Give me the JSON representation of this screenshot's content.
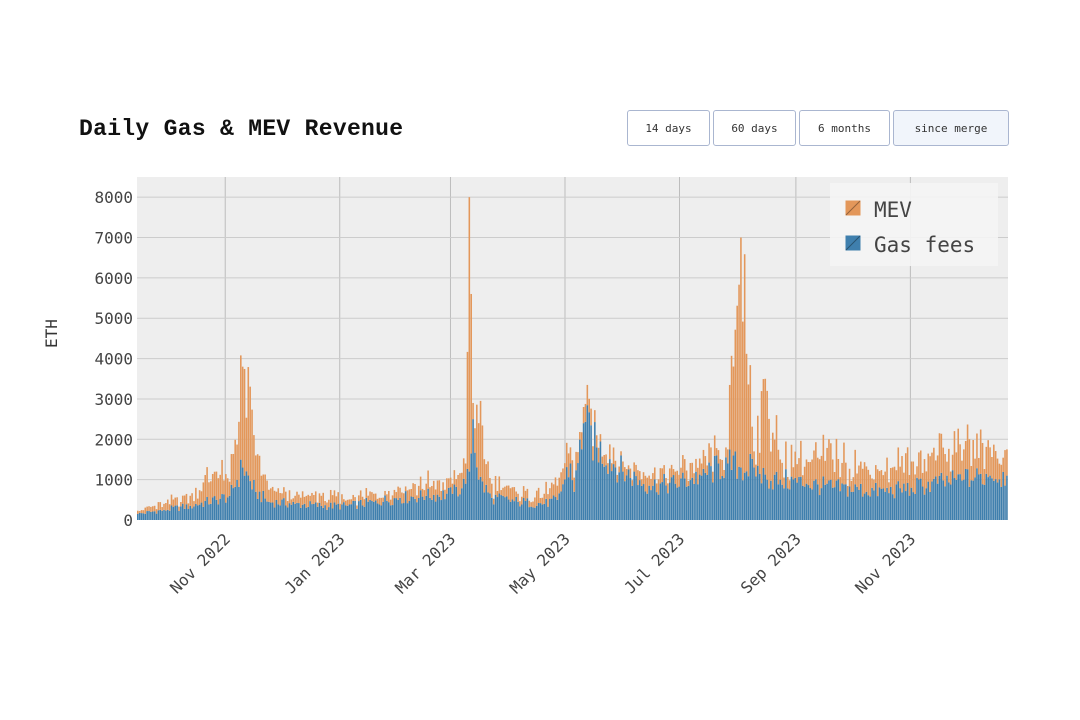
{
  "title": "Daily Gas & MEV Revenue",
  "range_buttons": [
    {
      "label": "14 days",
      "active": false
    },
    {
      "label": "60 days",
      "active": false
    },
    {
      "label": "6 months",
      "active": false
    },
    {
      "label": "since merge",
      "active": true
    }
  ],
  "colors": {
    "mev": "#e3975a",
    "gas": "#3f7fad",
    "plot_bg": "#eeeeee",
    "grid": "#cccccc"
  },
  "chart_data": {
    "type": "bar",
    "stacked": true,
    "title": "Daily Gas & MEV Revenue",
    "xlabel": "",
    "ylabel": "ETH",
    "x_start": "2022-09-15",
    "x_end": "2023-12-23",
    "ylim": [
      0,
      8500
    ],
    "y_ticks": [
      0,
      1000,
      2000,
      3000,
      4000,
      5000,
      6000,
      7000,
      8000
    ],
    "x_tick_labels": [
      {
        "date": "2022-11-01",
        "label": "Nov 2022"
      },
      {
        "date": "2023-01-01",
        "label": "Jan 2023"
      },
      {
        "date": "2023-03-01",
        "label": "Mar 2023"
      },
      {
        "date": "2023-05-01",
        "label": "May 2023"
      },
      {
        "date": "2023-07-01",
        "label": "Jul 2023"
      },
      {
        "date": "2023-09-01",
        "label": "Sep 2023"
      },
      {
        "date": "2023-11-01",
        "label": "Nov 2023"
      }
    ],
    "grid": true,
    "legend_position": "top-right",
    "series": [
      {
        "name": "MEV",
        "dates": [
          "2022-09-15",
          "2022-09-29",
          "2022-10-13",
          "2022-10-27",
          "2022-11-03",
          "2022-11-10",
          "2022-11-17",
          "2022-11-24",
          "2022-12-08",
          "2022-12-22",
          "2023-01-05",
          "2023-01-19",
          "2023-02-02",
          "2023-02-16",
          "2023-03-02",
          "2023-03-09",
          "2023-03-11",
          "2023-03-13",
          "2023-03-16",
          "2023-03-23",
          "2023-04-06",
          "2023-04-20",
          "2023-04-27",
          "2023-05-04",
          "2023-05-06",
          "2023-05-11",
          "2023-05-18",
          "2023-06-01",
          "2023-06-15",
          "2023-06-29",
          "2023-07-13",
          "2023-07-27",
          "2023-08-03",
          "2023-08-10",
          "2023-08-17",
          "2023-08-24",
          "2023-09-07",
          "2023-09-21",
          "2023-10-05",
          "2023-10-19",
          "2023-11-02",
          "2023-11-16",
          "2023-11-30",
          "2023-12-14",
          "2023-12-23"
        ],
        "values": [
          80,
          150,
          250,
          700,
          350,
          2500,
          900,
          300,
          200,
          250,
          150,
          200,
          250,
          300,
          250,
          500,
          6800,
          400,
          1400,
          350,
          200,
          250,
          350,
          400,
          350,
          400,
          300,
          250,
          250,
          300,
          300,
          350,
          5700,
          400,
          2200,
          500,
          600,
          700,
          600,
          500,
          650,
          700,
          750,
          700,
          650
        ]
      },
      {
        "name": "Gas fees",
        "dates": [
          "2022-09-15",
          "2022-09-29",
          "2022-10-13",
          "2022-10-27",
          "2022-11-03",
          "2022-11-10",
          "2022-11-17",
          "2022-11-24",
          "2022-12-08",
          "2022-12-22",
          "2023-01-05",
          "2023-01-19",
          "2023-02-02",
          "2023-02-16",
          "2023-03-02",
          "2023-03-09",
          "2023-03-11",
          "2023-03-13",
          "2023-03-16",
          "2023-03-23",
          "2023-04-06",
          "2023-04-20",
          "2023-04-27",
          "2023-05-04",
          "2023-05-06",
          "2023-05-11",
          "2023-05-18",
          "2023-06-01",
          "2023-06-15",
          "2023-06-29",
          "2023-07-13",
          "2023-07-27",
          "2023-08-03",
          "2023-08-10",
          "2023-08-17",
          "2023-08-24",
          "2023-09-07",
          "2023-09-21",
          "2023-10-05",
          "2023-10-19",
          "2023-11-02",
          "2023-11-16",
          "2023-11-30",
          "2023-12-14",
          "2023-12-23"
        ],
        "values": [
          150,
          250,
          350,
          500,
          600,
          1300,
          700,
          450,
          400,
          350,
          350,
          450,
          550,
          600,
          650,
          900,
          1200,
          2500,
          1000,
          550,
          450,
          400,
          500,
          1400,
          700,
          2400,
          1800,
          1200,
          850,
          900,
          1100,
          1400,
          1300,
          1300,
          1000,
          1000,
          900,
          800,
          750,
          700,
          800,
          900,
          1000,
          1100,
          1100
        ]
      }
    ]
  }
}
